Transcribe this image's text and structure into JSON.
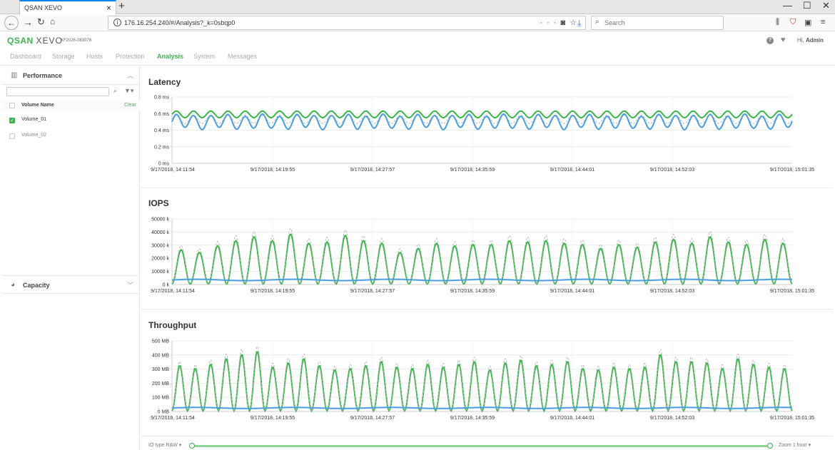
{
  "browser": {
    "tab_title": "QSAN XEVO",
    "url": "176.16.254.240/#/Analysis?_k=0sbqp0",
    "search_placeholder": "Search"
  },
  "app": {
    "logo_q": "QSAN",
    "logo_x": "XEVO",
    "serial": "XF2026-083078",
    "user_prefix": "Hi,",
    "user_name": "Admin"
  },
  "nav": {
    "items": [
      {
        "label": "Dashboard"
      },
      {
        "label": "Storage"
      },
      {
        "label": "Hosts"
      },
      {
        "label": "Protection"
      },
      {
        "label": "Analysis",
        "active": true
      },
      {
        "label": "System"
      },
      {
        "label": "Messages"
      }
    ]
  },
  "sidebar": {
    "performance_title": "Performance",
    "volume_header": "Volume Name",
    "clear_label": "Clear",
    "volumes": [
      {
        "name": "Volume_01",
        "checked": true
      },
      {
        "name": "Volume_02",
        "checked": false
      }
    ],
    "capacity_title": "Capacity"
  },
  "colors": {
    "accent": "#3bb54a",
    "series_green": "#3bb54a",
    "series_blue": "#4a9ee0",
    "series_dashed": "#b8b8b8"
  },
  "chart_data": [
    {
      "type": "line",
      "title": "Latency",
      "x_ticks": [
        "9/17/2018, 14:11:54",
        "9/17/2018, 14:19:55",
        "9/17/2018, 14:27:57",
        "9/17/2018, 14:35:59",
        "9/17/2018, 14:44:01",
        "9/17/2018, 14:52:03",
        "9/17/2018, 15:01:35"
      ],
      "y_ticks": [
        "0.8 ms",
        "0.6 ms",
        "0.4 ms",
        "0.2 ms",
        "0 ms"
      ],
      "ylim": [
        0,
        0.8
      ],
      "grid": true,
      "series": [
        {
          "color": "green",
          "base": 0.59,
          "amp": 0.04,
          "cycles": 36
        },
        {
          "color": "dashed",
          "base": 0.53,
          "amp": 0.05,
          "cycles": 36
        },
        {
          "color": "blue",
          "base": 0.5,
          "amp": 0.08,
          "cycles": 36
        }
      ]
    },
    {
      "type": "line",
      "title": "IOPS",
      "x_ticks": [
        "9/17/2018, 14:11:54",
        "9/17/2018, 14:19:55",
        "9/17/2018, 14:27:57",
        "9/17/2018, 14:35:59",
        "9/17/2018, 14:44:01",
        "9/17/2018, 14:52:03",
        "9/17/2018, 15:01:35"
      ],
      "y_ticks": [
        "50000 k",
        "40000 k",
        "30000 k",
        "20000 k",
        "10000 k",
        "0 k"
      ],
      "ylim": [
        0,
        50000
      ],
      "grid": true,
      "peaks": [
        26000,
        24000,
        29000,
        33000,
        36000,
        33000,
        38000,
        31000,
        32000,
        37000,
        33000,
        31000,
        24000,
        27000,
        31000,
        29000,
        30000,
        30000,
        33000,
        32000,
        33000,
        31000,
        30000,
        27000,
        30000,
        28000,
        32000,
        34000,
        31000,
        36000,
        32000,
        30000,
        34000,
        31000
      ],
      "series": [
        {
          "color": "green",
          "role": "peaks"
        },
        {
          "color": "dashed",
          "role": "peaks+10%"
        },
        {
          "color": "blue",
          "base": 3500
        }
      ]
    },
    {
      "type": "line",
      "title": "Throughput",
      "x_ticks": [
        "9/17/2018, 14:11:54",
        "9/17/2018, 14:19:55",
        "9/17/2018, 14:27:57",
        "9/17/2018, 14:35:59",
        "9/17/2018, 14:44:01",
        "9/17/2018, 14:52:03",
        "9/17/2018, 15:01:35"
      ],
      "y_ticks": [
        "500 MB",
        "400 MB",
        "300 MB",
        "200 MB",
        "100 MB",
        "0 MB"
      ],
      "ylim": [
        0,
        500
      ],
      "grid": true,
      "peaks": [
        320,
        300,
        330,
        370,
        400,
        420,
        310,
        340,
        370,
        320,
        290,
        300,
        320,
        350,
        310,
        300,
        330,
        310,
        330,
        350,
        290,
        340,
        360,
        320,
        330,
        350,
        300,
        290,
        310,
        300,
        310,
        400,
        350,
        350,
        340,
        300,
        370,
        330,
        310,
        300
      ],
      "series": [
        {
          "color": "green",
          "role": "peaks"
        },
        {
          "color": "dashed",
          "role": "peaks+8%"
        },
        {
          "color": "blue",
          "base": 25
        }
      ]
    }
  ],
  "bottom": {
    "io_type_label": "IO type R&W",
    "zoom_label": "Zoom 1 hour"
  }
}
